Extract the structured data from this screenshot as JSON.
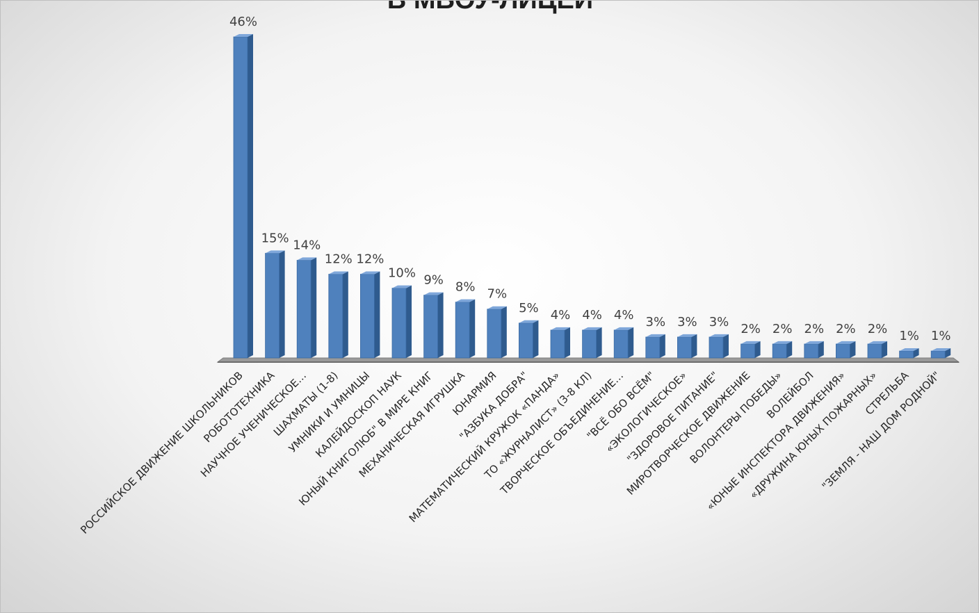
{
  "chart_data": {
    "type": "bar",
    "title": "В МБОУ-ЛИЦЕЙ",
    "categories": [
      "РОССИЙСКОЕ ДВИЖЕНИЕ ШКОЛЬНИКОВ",
      "РОБОТОТЕХНИКА",
      "НАУЧНОЕ УЧЕНИЧЕСКОЕ…",
      "ШАХМАТЫ (1-8)",
      "УМНИКИ И УМНИЦЫ",
      "КАЛЕЙДОСКОП НАУК",
      "ЮНЫЙ КНИГОЛЮБ\" В МИРЕ КНИГ",
      "МЕХАНИЧЕСКАЯ ИГРУШКА",
      "ЮНАРМИЯ",
      "\"АЗБУКА ДОБРА\"",
      "МАТЕМАТИЧЕСКИЙ КРУЖОК «ПАНДА»",
      "ТО «ЖУРНАЛИСТ» (3-8 КЛ)",
      "ТВОРЧЕСКОЕ ОБЪЕДИНЕНИЕ…",
      "\"ВСЁ ОБО ВСЁМ\"",
      "«ЭКОЛОГИЧЕСКОЕ»",
      "\"ЗДОРОВОЕ ПИТАНИЕ\"",
      "МИРОТВОРЧЕСКОЕ ДВИЖЕНИЕ",
      "ВОЛОНТЕРЫ ПОБЕДЫ»",
      "ВОЛЕЙБОЛ",
      "«ЮНЫЕ ИНСПЕКТОРА ДВИЖЕНИЯ»",
      "«ДРУЖИНА ЮНЫХ ПОЖАРНЫХ»",
      "СТРЕЛЬБА",
      "\"ЗЕМЛЯ - НАШ ДОМ РОДНОЙ\""
    ],
    "values": [
      46,
      15,
      14,
      12,
      12,
      10,
      9,
      8,
      7,
      5,
      4,
      4,
      4,
      3,
      3,
      3,
      2,
      2,
      2,
      2,
      2,
      1,
      1
    ],
    "data_labels": [
      "46%",
      "15%",
      "14%",
      "12%",
      "12%",
      "10%",
      "9%",
      "8%",
      "7%",
      "5%",
      "4%",
      "4%",
      "4%",
      "3%",
      "3%",
      "3%",
      "2%",
      "2%",
      "2%",
      "2%",
      "2%",
      "1%",
      "1%"
    ],
    "ylim": [
      0,
      46
    ],
    "grid": false,
    "legend": "none",
    "colors": {
      "bar": "#4F81BD",
      "bar_side": "#2F5B8E",
      "bar_top": "#7FA7DA",
      "floor": "#7f7f7f"
    }
  }
}
